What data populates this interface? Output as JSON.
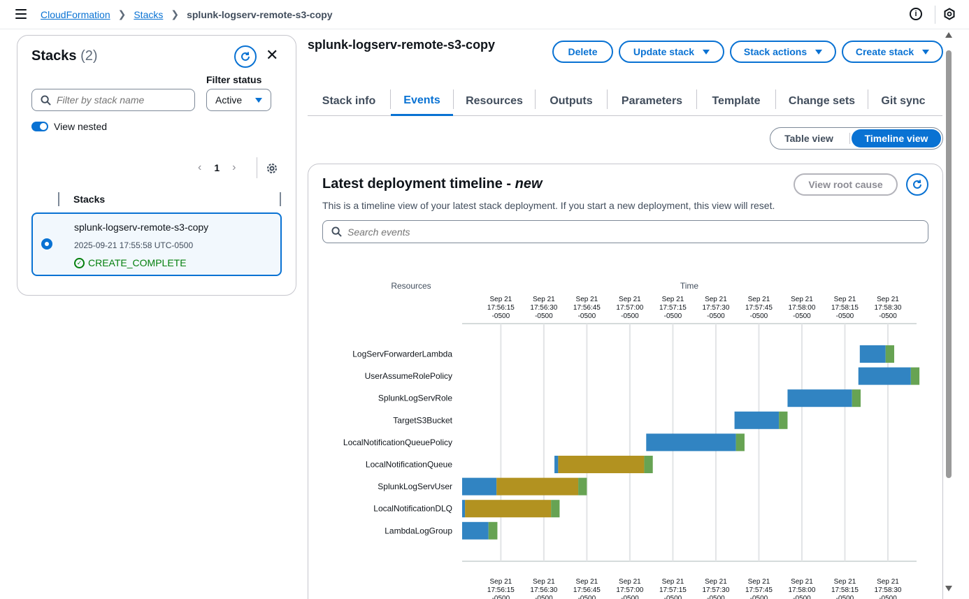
{
  "breadcrumb": {
    "items": [
      "CloudFormation",
      "Stacks"
    ],
    "current": "splunk-logserv-remote-s3-copy"
  },
  "topbar": {
    "info_icon": "info-icon",
    "settings_icon": "hexagon-icon"
  },
  "left_panel": {
    "title": "Stacks",
    "count": "(2)",
    "filter_label": "Filter status",
    "search_placeholder": "Filter by stack name",
    "filter_value": "Active",
    "toggle_label": "View nested",
    "page": "1",
    "column_header": "Stacks",
    "stack": {
      "name": "splunk-logserv-remote-s3-copy",
      "date": "2025-09-21 17:55:58 UTC-0500",
      "status": "CREATE_COMPLETE"
    }
  },
  "main": {
    "title": "splunk-logserv-remote-s3-copy",
    "buttons": {
      "delete": "Delete",
      "update": "Update stack",
      "actions": "Stack actions",
      "create": "Create stack"
    },
    "tabs": [
      "Stack info",
      "Events",
      "Resources",
      "Outputs",
      "Parameters",
      "Template",
      "Change sets",
      "Git sync"
    ],
    "active_tab": "Events",
    "view_toggle": {
      "table": "Table view",
      "timeline": "Timeline view",
      "active": "Timeline view"
    }
  },
  "timeline": {
    "title": "Latest deployment timeline - ",
    "title_emphasis": "new",
    "description": "This is a timeline view of your latest stack deployment. If you start a new deployment, this view will reset.",
    "root_cause_button": "View root cause",
    "search_placeholder": "Search events"
  },
  "colors": {
    "accent": "#0972d3",
    "in_progress": "#3184c2",
    "config_complete": "#b29220",
    "complete": "#67a353",
    "success": "#037f0c"
  },
  "chart_data": {
    "type": "gantt",
    "resources_label": "Resources",
    "time_label": "Time",
    "ticks": [
      [
        "Sep 21",
        "17:56:15",
        "-0500"
      ],
      [
        "Sep 21",
        "17:56:30",
        "-0500"
      ],
      [
        "Sep 21",
        "17:56:45",
        "-0500"
      ],
      [
        "Sep 21",
        "17:57:00",
        "-0500"
      ],
      [
        "Sep 21",
        "17:57:15",
        "-0500"
      ],
      [
        "Sep 21",
        "17:57:30",
        "-0500"
      ],
      [
        "Sep 21",
        "17:57:45",
        "-0500"
      ],
      [
        "Sep 21",
        "17:58:00",
        "-0500"
      ],
      [
        "Sep 21",
        "17:58:15",
        "-0500"
      ],
      [
        "Sep 21",
        "17:58:30",
        "-0500"
      ]
    ],
    "tick_seconds": [
      15,
      30,
      45,
      60,
      75,
      90,
      105,
      120,
      135,
      150
    ],
    "x_range_seconds": [
      1.5,
      160
    ],
    "rows": [
      {
        "resource": "LogServForwarderLambda",
        "segments": [
          [
            140.2,
            149.2,
            "in_progress"
          ],
          [
            149.2,
            152.2,
            "complete"
          ]
        ]
      },
      {
        "resource": "UserAssumeRolePolicy",
        "segments": [
          [
            139.7,
            158.0,
            "in_progress"
          ],
          [
            158.0,
            161.0,
            "complete"
          ]
        ]
      },
      {
        "resource": "SplunkLogServRole",
        "segments": [
          [
            115.0,
            137.5,
            "in_progress"
          ],
          [
            137.5,
            140.5,
            "complete"
          ]
        ]
      },
      {
        "resource": "TargetS3Bucket",
        "segments": [
          [
            96.5,
            112.0,
            "in_progress"
          ],
          [
            112.0,
            115.0,
            "complete"
          ]
        ]
      },
      {
        "resource": "LocalNotificationQueuePolicy",
        "segments": [
          [
            65.7,
            97.0,
            "in_progress"
          ],
          [
            97.0,
            100.0,
            "complete"
          ]
        ]
      },
      {
        "resource": "LocalNotificationQueue",
        "segments": [
          [
            33.7,
            35.0,
            "in_progress"
          ],
          [
            35.0,
            65.0,
            "config_complete"
          ],
          [
            65.0,
            68.0,
            "complete"
          ]
        ]
      },
      {
        "resource": "SplunkLogServUser",
        "segments": [
          [
            1.5,
            13.5,
            "in_progress"
          ],
          [
            13.5,
            42.0,
            "config_complete"
          ],
          [
            42.0,
            45.0,
            "complete"
          ]
        ]
      },
      {
        "resource": "LocalNotificationDLQ",
        "segments": [
          [
            1.5,
            2.5,
            "in_progress"
          ],
          [
            2.5,
            32.5,
            "config_complete"
          ],
          [
            32.5,
            35.5,
            "complete"
          ]
        ]
      },
      {
        "resource": "LambdaLogGroup",
        "segments": [
          [
            1.5,
            10.7,
            "in_progress"
          ],
          [
            10.7,
            13.8,
            "complete"
          ]
        ]
      }
    ]
  }
}
